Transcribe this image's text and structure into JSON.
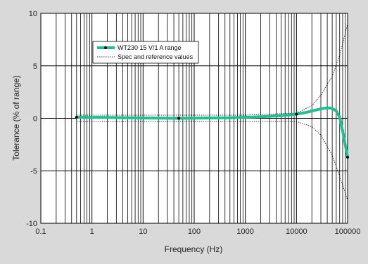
{
  "chart_data": {
    "type": "line",
    "xlabel": "Frequency (Hz)",
    "ylabel": "Tolerance (% of range)",
    "x_scale": "log",
    "xlim": [
      0.1,
      100000
    ],
    "ylim": [
      -10,
      10
    ],
    "x_ticks": [
      0.1,
      1,
      10,
      100,
      1000,
      10000,
      100000
    ],
    "x_tick_labels": [
      "0.1",
      "1",
      "10",
      "100",
      "1000",
      "10000",
      "100000"
    ],
    "y_ticks": [
      -10,
      -5,
      0,
      5,
      10
    ],
    "y_tick_labels": [
      "-10",
      "-5",
      "0",
      "5",
      "10"
    ],
    "grid": true,
    "legend_position": "top-left",
    "series": [
      {
        "name": "WT230 15 V/1 A range",
        "color": "#1fbf8f",
        "style": "solid-thick-with-markers",
        "x": [
          0.5,
          1,
          2,
          5,
          10,
          20,
          50,
          100,
          200,
          500,
          1000,
          2000,
          5000,
          10000,
          15000,
          20000,
          30000,
          40000,
          50000,
          60000,
          70000,
          80000,
          100000
        ],
        "y": [
          0.1,
          0.1,
          0.08,
          0.05,
          0.03,
          0.02,
          0.0,
          0.02,
          0.03,
          0.05,
          0.1,
          0.15,
          0.25,
          0.4,
          0.55,
          0.7,
          0.9,
          1.0,
          0.95,
          0.7,
          0.1,
          -1.2,
          -3.7
        ],
        "markers_x": [
          0.5,
          50,
          10000,
          100000
        ],
        "markers_y": [
          0.1,
          0.0,
          0.4,
          -3.7
        ]
      },
      {
        "name": "Spec and reference values",
        "color": "#000000",
        "style": "dotted",
        "x": [
          0.5,
          1,
          10,
          100,
          1000,
          10000,
          20000,
          30000,
          50000,
          70000,
          100000
        ],
        "y": [
          0.3,
          0.3,
          0.3,
          0.3,
          0.3,
          0.5,
          1.2,
          2.2,
          4.0,
          6.0,
          9.0
        ],
        "x_lower": [
          0.5,
          1,
          10,
          100,
          1000,
          10000,
          20000,
          30000,
          50000,
          70000,
          100000
        ],
        "y_lower": [
          -0.3,
          -0.3,
          -0.3,
          -0.3,
          -0.3,
          -0.3,
          -0.8,
          -1.6,
          -3.5,
          -5.5,
          -7.8
        ]
      }
    ]
  }
}
